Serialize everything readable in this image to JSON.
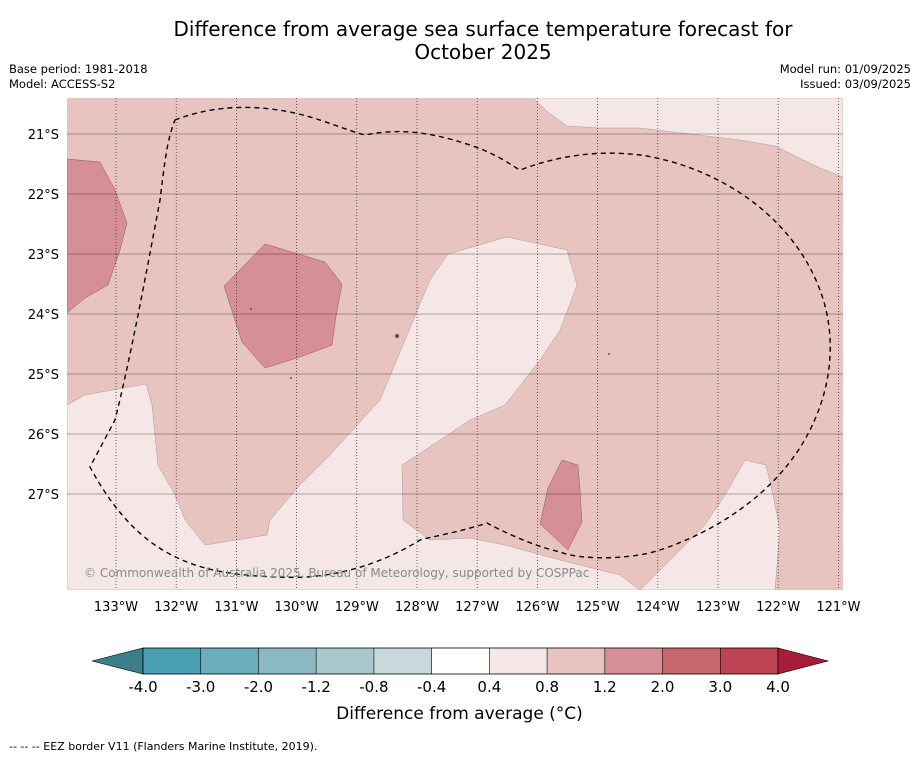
{
  "title": "Difference from average sea surface temperature forecast for October 2025",
  "title_line1": "Difference from average sea surface temperature forecast for",
  "title_line2": "October 2025",
  "base_period": "Base period: 1981-2018",
  "model": "Model: ACCESS-S2",
  "model_run": "Model run: 01/09/2025",
  "issued": "Issued: 03/09/2025",
  "copyright": "© Commonwealth of Australia 2025, Bureau of Meteorology, supported by COSPPac",
  "lat_labels": [
    "21°S",
    "22°S",
    "23°S",
    "24°S",
    "25°S",
    "26°S",
    "27°S"
  ],
  "lon_labels": [
    "133°W",
    "132°W",
    "131°W",
    "130°W",
    "129°W",
    "128°W",
    "127°W",
    "126°W",
    "125°W",
    "124°W",
    "123°W",
    "122°W",
    "121°W"
  ],
  "colorbar": {
    "label": "Difference from average (°C)",
    "ticks": [
      "-4.0",
      "-3.0",
      "-2.0",
      "-1.2",
      "-0.8",
      "-0.4",
      "0.4",
      "0.8",
      "1.2",
      "2.0",
      "3.0",
      "4.0"
    ],
    "colors": [
      "#3b7f8c",
      "#48a0b2",
      "#6badbc",
      "#8cb8c4",
      "#a9c8ce",
      "#c8d9de",
      "#ffffff",
      "#f5e7e6",
      "#e8c4c0",
      "#d68f96",
      "#c9676f",
      "#be4453",
      "#a81c3a"
    ]
  },
  "footnote": "--  --  -- EEZ border V11 (Flanders Marine Institute, 2019).",
  "legend_colors": {
    "low_band": "#f5e7e6",
    "mid_band": "#e8c4c0",
    "high_band": "#d68f96"
  }
}
